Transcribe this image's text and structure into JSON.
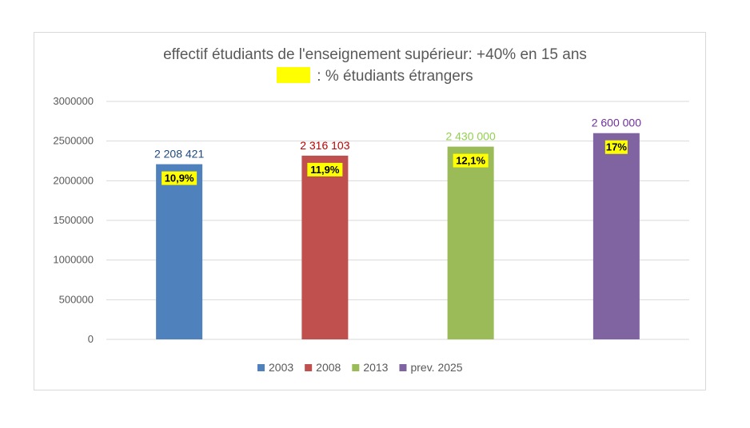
{
  "chart_data": {
    "type": "bar",
    "title": "effectif étudiants de l'enseignement supérieur: +40% en 15 ans",
    "subtitle": ": % étudiants étrangers",
    "subtitle_swatch_color": "#ffff00",
    "categories": [
      "2003",
      "2008",
      "2013",
      "prev. 2025"
    ],
    "values": [
      2208421,
      2316103,
      2430000,
      2600000
    ],
    "value_labels": [
      "2 208 421",
      "2 316 103",
      "2 430 000",
      "2 600 000"
    ],
    "foreign_student_share_labels": [
      "10,9%",
      "11,9%",
      "12,1%",
      "17%"
    ],
    "colors": [
      "#4f81bd",
      "#c0504d",
      "#9bbb59",
      "#8064a2"
    ],
    "value_label_colors": [
      "#1f497d",
      "#c00000",
      "#92d050",
      "#7030a0"
    ],
    "yticks": [
      "0",
      "500000",
      "1000000",
      "1500000",
      "2000000",
      "2500000",
      "3000000"
    ],
    "ylim": [
      0,
      3000000
    ],
    "grid": true,
    "legend": {
      "position": "bottom",
      "entries": [
        "2003",
        "2008",
        "2013",
        "prev. 2025"
      ]
    }
  }
}
